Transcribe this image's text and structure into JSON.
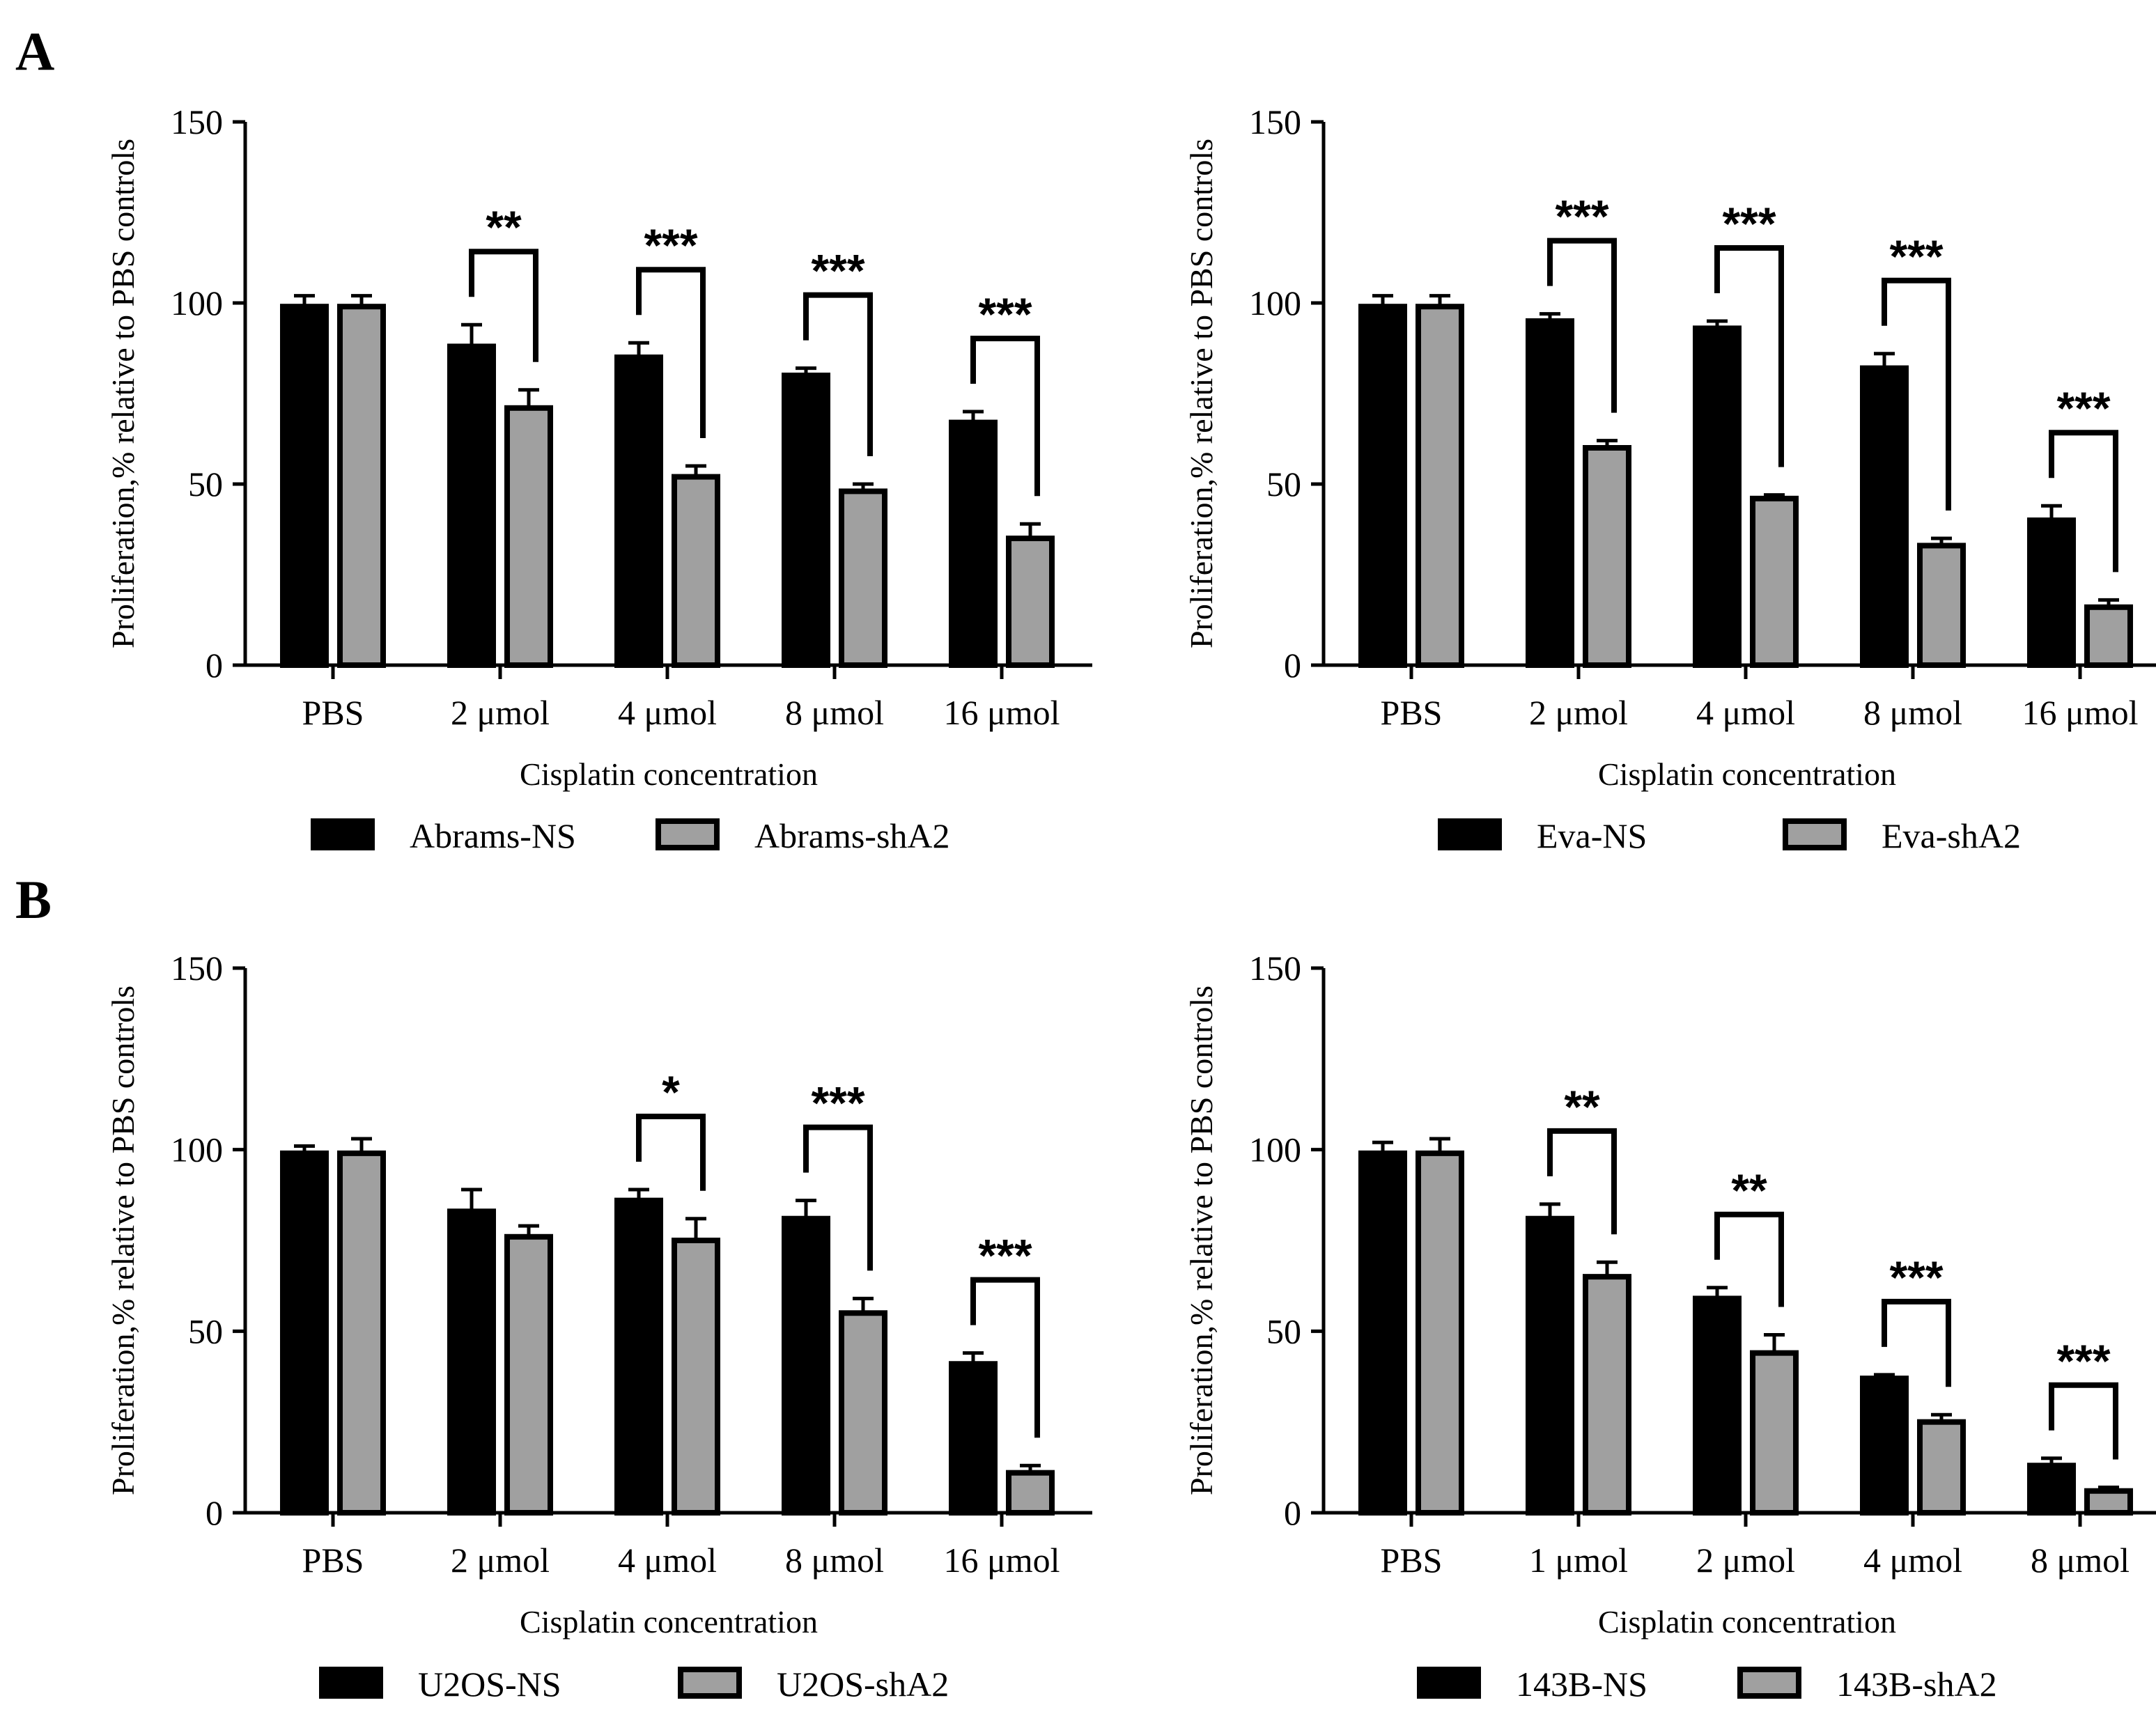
{
  "panel_labels": {
    "A": "A",
    "B": "B"
  },
  "colors": {
    "ns": "#000000",
    "sh": "#a0a0a0",
    "outline": "#000000"
  },
  "chart_data": [
    {
      "type": "bar",
      "categories": [
        "PBS",
        "2 μmol",
        "4 μmol",
        "8 μmol",
        "16 μmol"
      ],
      "series": [
        {
          "name": "Abrams-NS",
          "values": [
            99,
            88,
            85,
            80,
            67
          ],
          "errors": [
            3,
            6,
            4,
            2,
            3
          ]
        },
        {
          "name": "Abrams-shA2",
          "values": [
            99,
            71,
            52,
            48,
            35
          ],
          "errors": [
            3,
            5,
            3,
            2,
            4
          ]
        }
      ],
      "significance": [
        "",
        "**",
        "***",
        "***",
        "***"
      ],
      "ylabel": "Proliferation,% relative to PBS controls",
      "xlabel": "Cisplatin concentration",
      "yticks": [
        0,
        50,
        100,
        150
      ],
      "ylim": [
        0,
        150
      ],
      "legend": "bottom"
    },
    {
      "type": "bar",
      "categories": [
        "PBS",
        "2 μmol",
        "4 μmol",
        "8 μmol",
        "16 μmol"
      ],
      "series": [
        {
          "name": "Eva-NS",
          "values": [
            99,
            95,
            93,
            82,
            40
          ],
          "errors": [
            3,
            2,
            2,
            4,
            4
          ]
        },
        {
          "name": "Eva-shA2",
          "values": [
            99,
            60,
            46,
            33,
            16
          ],
          "errors": [
            3,
            2,
            1,
            2,
            2
          ]
        }
      ],
      "significance": [
        "",
        "***",
        "***",
        "***",
        "***"
      ],
      "ylabel": "Proliferation,% relative to PBS controls",
      "xlabel": "Cisplatin concentration",
      "yticks": [
        0,
        50,
        100,
        150
      ],
      "ylim": [
        0,
        150
      ],
      "legend": "bottom"
    },
    {
      "type": "bar",
      "categories": [
        "PBS",
        "2 μmol",
        "4 μmol",
        "8 μmol",
        "16 μmol"
      ],
      "series": [
        {
          "name": "U2OS-NS",
          "values": [
            99,
            83,
            86,
            81,
            41
          ],
          "errors": [
            2,
            6,
            3,
            5,
            3
          ]
        },
        {
          "name": "U2OS-shA2",
          "values": [
            99,
            76,
            75,
            55,
            11
          ],
          "errors": [
            4,
            3,
            6,
            4,
            2
          ]
        }
      ],
      "significance": [
        "",
        "",
        "*",
        "***",
        "***"
      ],
      "ylabel": "Proliferation,% relative to PBS controls",
      "xlabel": "Cisplatin concentration",
      "yticks": [
        0,
        50,
        100,
        150
      ],
      "ylim": [
        0,
        150
      ],
      "legend": "bottom"
    },
    {
      "type": "bar",
      "categories": [
        "PBS",
        "1 μmol",
        "2 μmol",
        "4 μmol",
        "8 μmol"
      ],
      "series": [
        {
          "name": "143B-NS",
          "values": [
            99,
            81,
            59,
            37,
            13
          ],
          "errors": [
            3,
            4,
            3,
            1,
            2
          ]
        },
        {
          "name": "143B-shA2",
          "values": [
            99,
            65,
            44,
            25,
            6
          ],
          "errors": [
            4,
            4,
            5,
            2,
            1
          ]
        }
      ],
      "significance": [
        "",
        "**",
        "**",
        "***",
        "***"
      ],
      "ylabel": "Proliferation,% relative to PBS controls",
      "xlabel": "Cisplatin concentration",
      "yticks": [
        0,
        50,
        100,
        150
      ],
      "ylim": [
        0,
        150
      ],
      "legend": "bottom"
    }
  ]
}
